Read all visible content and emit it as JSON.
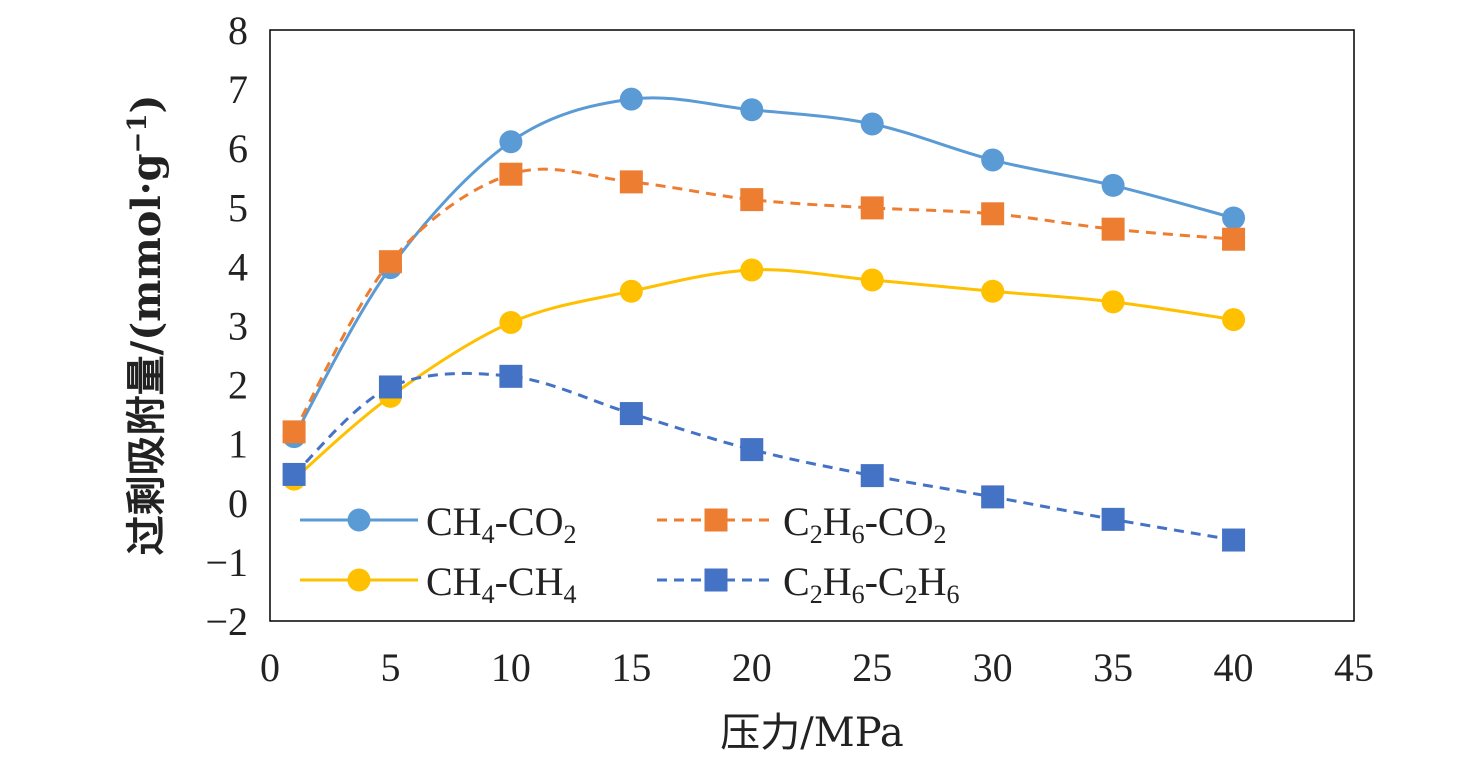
{
  "chart_data": {
    "type": "line",
    "xlabel": "压力/MPa",
    "ylabel": "过剩吸附量/(mmol·g",
    "ylabel_sup": "−1",
    "ylabel_close": ")",
    "xlim": [
      0,
      45
    ],
    "ylim": [
      -2,
      8
    ],
    "x_ticks": [
      "0",
      "5",
      "10",
      "15",
      "20",
      "25",
      "30",
      "35",
      "40",
      "45"
    ],
    "y_ticks": [
      "−2",
      "−1",
      "0",
      "1",
      "2",
      "3",
      "4",
      "5",
      "6",
      "7",
      "8"
    ],
    "grid": false,
    "legend_position": "lower-left",
    "x": [
      1,
      5,
      10,
      15,
      20,
      25,
      30,
      35,
      40
    ],
    "series": [
      {
        "name": "CH₄-CO₂",
        "legend_main": "CH",
        "legend_sub1": "4",
        "legend_mid": "-CO",
        "legend_sub2": "2",
        "values": [
          1.12,
          3.98,
          6.11,
          6.83,
          6.65,
          6.41,
          5.8,
          5.37,
          4.82
        ],
        "color": "#5b9bd5",
        "marker": "circle",
        "dash": "solid"
      },
      {
        "name": "C₂H₆-CO₂",
        "legend_main": "C",
        "legend_sub1": "2",
        "legend_mid": "H",
        "legend_sub2": "6",
        "legend_tail": "-CO",
        "legend_sub3": "2",
        "values": [
          1.2,
          4.08,
          5.56,
          5.43,
          5.13,
          4.99,
          4.89,
          4.63,
          4.46
        ],
        "color": "#ed7d31",
        "marker": "square",
        "dash": "dashed"
      },
      {
        "name": "CH₄-CH₄",
        "legend_main": "CH",
        "legend_sub1": "4",
        "legend_mid": "-CH",
        "legend_sub2": "4",
        "values": [
          0.4,
          1.8,
          3.05,
          3.58,
          3.94,
          3.77,
          3.58,
          3.4,
          3.1
        ],
        "color": "#ffc000",
        "marker": "circle",
        "dash": "solid"
      },
      {
        "name": "C₂H₆-C₂H₆",
        "legend_main": "C",
        "legend_sub1": "2",
        "legend_mid": "H",
        "legend_sub2": "6",
        "legend_tail": "-C",
        "legend_sub3": "2",
        "legend_tail2": "H",
        "legend_sub4": "6",
        "values": [
          0.48,
          1.96,
          2.14,
          1.51,
          0.9,
          0.46,
          0.1,
          -0.28,
          -0.63
        ],
        "color": "#4472c4",
        "marker": "square",
        "dash": "dashed"
      }
    ]
  }
}
